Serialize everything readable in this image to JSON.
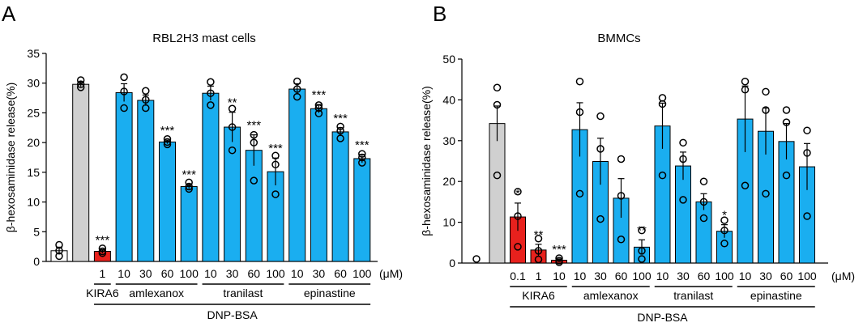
{
  "chart_data": [
    {
      "panel": "A",
      "type": "bar",
      "title": "RBL2H3 mast cells",
      "ylabel": "β-hexosaminidase release(%)",
      "ylim": [
        0,
        35
      ],
      "yticks": [
        0,
        5,
        10,
        15,
        20,
        25,
        30,
        35
      ],
      "unit": "(μM)",
      "bars": [
        {
          "label": "",
          "value": 1.8,
          "err": 0.6,
          "color": "#ffffff",
          "points": [
            0.9,
            1.8,
            2.8
          ],
          "sig": ""
        },
        {
          "label": "",
          "value": 29.8,
          "err": 0.4,
          "color": "#d0d0d0",
          "points": [
            29.3,
            29.8,
            30.5
          ],
          "sig": ""
        },
        {
          "label": "1",
          "value": 1.7,
          "err": 0.3,
          "color": "#e8211d",
          "points": [
            1.4,
            1.7,
            2.2
          ],
          "sig": "***"
        },
        {
          "label": "10",
          "value": 28.4,
          "err": 1.5,
          "color": "#1aaef0",
          "points": [
            25.8,
            28.6,
            31.0
          ],
          "sig": ""
        },
        {
          "label": "30",
          "value": 27.1,
          "err": 0.9,
          "color": "#1aaef0",
          "points": [
            25.8,
            27.2,
            28.7
          ],
          "sig": ""
        },
        {
          "label": "60",
          "value": 20.1,
          "err": 0.3,
          "color": "#1aaef0",
          "points": [
            19.7,
            20.1,
            20.6
          ],
          "sig": "***"
        },
        {
          "label": "100",
          "value": 12.6,
          "err": 0.4,
          "color": "#1aaef0",
          "points": [
            12.2,
            12.6,
            13.3
          ],
          "sig": "***"
        },
        {
          "label": "10",
          "value": 28.3,
          "err": 1.2,
          "color": "#1aaef0",
          "points": [
            26.3,
            28.3,
            30.2
          ],
          "sig": ""
        },
        {
          "label": "30",
          "value": 22.6,
          "err": 2.5,
          "color": "#1aaef0",
          "points": [
            18.7,
            22.6,
            25.7
          ],
          "sig": "**"
        },
        {
          "label": "60",
          "value": 18.7,
          "err": 2.6,
          "color": "#1aaef0",
          "points": [
            13.6,
            20.0,
            21.3
          ],
          "sig": "***"
        },
        {
          "label": "100",
          "value": 15.1,
          "err": 2.3,
          "color": "#1aaef0",
          "points": [
            11.3,
            16.3,
            17.8
          ],
          "sig": "***"
        },
        {
          "label": "10",
          "value": 29.0,
          "err": 0.9,
          "color": "#1aaef0",
          "points": [
            27.7,
            29.0,
            30.3
          ],
          "sig": ""
        },
        {
          "label": "30",
          "value": 25.7,
          "err": 0.7,
          "color": "#1aaef0",
          "points": [
            24.9,
            25.8,
            26.3
          ],
          "sig": "***"
        },
        {
          "label": "60",
          "value": 21.8,
          "err": 0.7,
          "color": "#1aaef0",
          "points": [
            20.7,
            22.0,
            22.7
          ],
          "sig": "***"
        },
        {
          "label": "100",
          "value": 17.3,
          "err": 0.7,
          "color": "#1aaef0",
          "points": [
            16.6,
            17.5,
            18.1
          ],
          "sig": "***"
        }
      ],
      "groups": [
        {
          "label": "KIRA6",
          "from": 2,
          "to": 2
        },
        {
          "label": "amlexanox",
          "from": 3,
          "to": 6
        },
        {
          "label": "tranilast",
          "from": 7,
          "to": 10
        },
        {
          "label": "epinastine",
          "from": 11,
          "to": 14
        }
      ],
      "treatment": {
        "label": "DNP-BSA",
        "from": 2,
        "to": 14
      }
    },
    {
      "panel": "B",
      "type": "bar",
      "title": "BMMCs",
      "ylabel": "β-hexosaminidase release(%)",
      "ylim": [
        0,
        50
      ],
      "yticks": [
        0,
        10,
        20,
        30,
        40,
        50
      ],
      "unit": "(μM)",
      "bars": [
        {
          "label": "",
          "value": 0,
          "err": 0,
          "color": "#ffffff",
          "points": [
            1.0
          ],
          "sig": ""
        },
        {
          "label": "",
          "value": 34.2,
          "err": 4.3,
          "color": "#d0d0d0",
          "points": [
            21.5,
            38.8,
            43.0
          ],
          "sig": ""
        },
        {
          "label": "0.1",
          "value": 11.3,
          "err": 3.4,
          "color": "#e8211d",
          "points": [
            4.0,
            11.5,
            17.5
          ],
          "sig": "*"
        },
        {
          "label": "1",
          "value": 3.2,
          "err": 1.4,
          "color": "#e8211d",
          "points": [
            0.9,
            3.0,
            6.0
          ],
          "sig": "**"
        },
        {
          "label": "10",
          "value": 0.7,
          "err": 0.3,
          "color": "#e8211d",
          "points": [
            0.2,
            0.6,
            1.2
          ],
          "sig": "***"
        },
        {
          "label": "10",
          "value": 32.7,
          "err": 6.6,
          "color": "#1aaef0",
          "points": [
            17.0,
            37.0,
            44.5
          ],
          "sig": ""
        },
        {
          "label": "30",
          "value": 24.9,
          "err": 5.7,
          "color": "#1aaef0",
          "points": [
            10.8,
            28.0,
            36.0
          ],
          "sig": ""
        },
        {
          "label": "60",
          "value": 15.9,
          "err": 4.8,
          "color": "#1aaef0",
          "points": [
            5.8,
            16.5,
            25.5
          ],
          "sig": ""
        },
        {
          "label": "100",
          "value": 3.9,
          "err": 1.8,
          "color": "#1aaef0",
          "points": [
            1.0,
            3.0,
            8.0
          ],
          "sig": "**"
        },
        {
          "label": "10",
          "value": 33.6,
          "err": 5.6,
          "color": "#1aaef0",
          "points": [
            21.5,
            39.0,
            40.5
          ],
          "sig": ""
        },
        {
          "label": "30",
          "value": 23.8,
          "err": 3.4,
          "color": "#1aaef0",
          "points": [
            15.5,
            25.5,
            29.5
          ],
          "sig": ""
        },
        {
          "label": "60",
          "value": 15.0,
          "err": 2.0,
          "color": "#1aaef0",
          "points": [
            11.0,
            15.0,
            20.0
          ],
          "sig": ""
        },
        {
          "label": "100",
          "value": 7.8,
          "err": 1.6,
          "color": "#1aaef0",
          "points": [
            4.8,
            8.0,
            10.5
          ],
          "sig": "*"
        },
        {
          "label": "10",
          "value": 35.3,
          "err": 8.1,
          "color": "#1aaef0",
          "points": [
            19.0,
            42.5,
            44.5
          ],
          "sig": ""
        },
        {
          "label": "30",
          "value": 32.3,
          "err": 5.7,
          "color": "#1aaef0",
          "points": [
            17.0,
            37.5,
            42.0
          ],
          "sig": ""
        },
        {
          "label": "60",
          "value": 29.8,
          "err": 4.4,
          "color": "#1aaef0",
          "points": [
            21.5,
            34.5,
            37.5
          ],
          "sig": ""
        },
        {
          "label": "100",
          "value": 23.6,
          "err": 5.7,
          "color": "#1aaef0",
          "points": [
            11.5,
            27.0,
            32.5
          ],
          "sig": ""
        }
      ],
      "groups": [
        {
          "label": "KIRA6",
          "from": 2,
          "to": 4
        },
        {
          "label": "amlexanox",
          "from": 5,
          "to": 8
        },
        {
          "label": "tranilast",
          "from": 9,
          "to": 12
        },
        {
          "label": "epinastine",
          "from": 13,
          "to": 16
        }
      ],
      "treatment": {
        "label": "DNP-BSA",
        "from": 2,
        "to": 16
      }
    }
  ]
}
